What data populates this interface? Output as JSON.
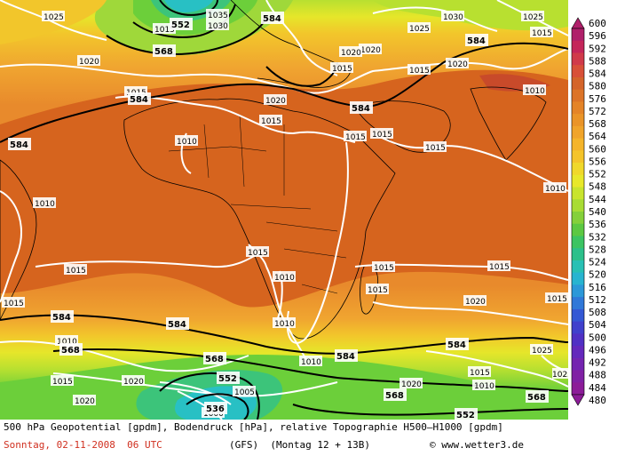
{
  "map": {
    "isobar_labels": [
      "1025",
      "1020",
      "1015",
      "1010",
      "1005",
      "1000",
      "1030",
      "1035"
    ],
    "height_labels": [
      "552",
      "568",
      "584",
      "536"
    ],
    "colors": {
      "deep_orange": "#d6641e",
      "orange": "#e88a2c",
      "light_orange": "#f0a530",
      "yellow_orange": "#f2c62b",
      "yellow": "#e6e62a",
      "yellow_green": "#b8e030",
      "green": "#6ccf3a",
      "teal_green": "#3cc47a",
      "cyan": "#28c0c4",
      "ocean_north": "#9fd83a"
    }
  },
  "legend": {
    "ticks": [
      "600",
      "596",
      "592",
      "588",
      "584",
      "580",
      "576",
      "572",
      "568",
      "564",
      "560",
      "556",
      "552",
      "548",
      "544",
      "540",
      "536",
      "532",
      "528",
      "524",
      "520",
      "516",
      "512",
      "508",
      "504",
      "500",
      "496",
      "492",
      "488",
      "484",
      "480"
    ],
    "colors": [
      "#b0206a",
      "#c4265a",
      "#d03a4a",
      "#d85038",
      "#d4642a",
      "#dc7428",
      "#e48428",
      "#ea9428",
      "#f0a42a",
      "#f4b42a",
      "#f4c42a",
      "#f0d82a",
      "#e8e82a",
      "#c8e42e",
      "#a8dc34",
      "#84d03a",
      "#5cc842",
      "#3cc462",
      "#2cc08a",
      "#28c0b4",
      "#28b4d0",
      "#2c98d8",
      "#3078d8",
      "#3458d4",
      "#4040cc",
      "#5030c4",
      "#6428bc",
      "#7424b0",
      "#8020a4",
      "#8c1c98"
    ]
  },
  "footer": {
    "line1": "500 hPa Geopotential [gpdm], Bodendruck [hPa], relative Topographie H500—H1000 [gpdm]",
    "date": "Sonntag, 02-11-2008  06 UTC",
    "model": "(GFS)  (Montag 12 + 13B)",
    "credit": "© www.wetter3.de"
  }
}
